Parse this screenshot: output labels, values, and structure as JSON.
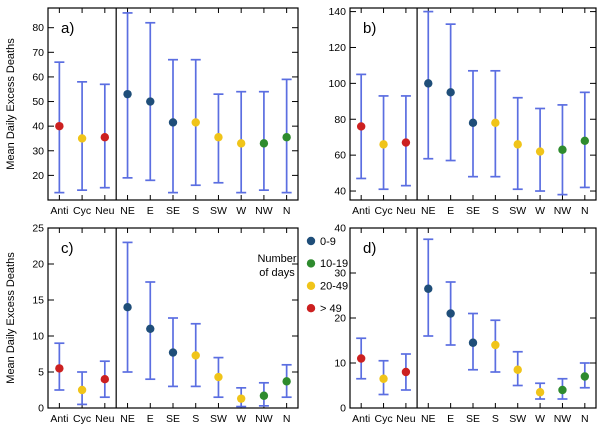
{
  "figure": {
    "y_axis_title": "Mean Daily Excess Deaths"
  },
  "chart_data": {
    "type": "scatter",
    "description": "Four-panel figure of mean daily excess deaths with error bars by synoptic category (Anti, Cyc, Neu) and wind direction (NE..N)",
    "categories": [
      "Anti",
      "Cyc",
      "Neu",
      "NE",
      "E",
      "SE",
      "S",
      "SW",
      "W",
      "NW",
      "N"
    ],
    "separator_after_index": 2,
    "error_bar_color": "#5b6ee1",
    "axis_color": "#000000",
    "group_colors": {
      "0-9": "#1f4e79",
      "10-19": "#2e8b2e",
      "20-49": "#f0c419",
      "> 49": "#cc2020"
    },
    "category_groups": [
      "> 49",
      "20-49",
      "> 49",
      "0-9",
      "0-9",
      "0-9",
      "20-49",
      "20-49",
      "20-49",
      "10-19",
      "10-19"
    ],
    "legend": {
      "title_lines": [
        "Number",
        "of days"
      ],
      "entries": [
        {
          "label": "0-9",
          "group": "0-9"
        },
        {
          "label": "10-19",
          "group": "10-19"
        },
        {
          "label": "20-49",
          "group": "20-49"
        },
        {
          "label": "> 49",
          "group": "> 49"
        }
      ]
    },
    "panels": [
      {
        "id": "a",
        "label": "a)",
        "ylabel": "Mean Daily Excess Deaths",
        "ylim": [
          10,
          88
        ],
        "yticks": [
          20,
          30,
          40,
          50,
          60,
          70,
          80
        ],
        "values": [
          40,
          35,
          35.5,
          53,
          50,
          41.5,
          41.5,
          35.5,
          33,
          33,
          35.5
        ],
        "lo": [
          13,
          14,
          15,
          19,
          18,
          13,
          16,
          17,
          13,
          14,
          13
        ],
        "hi": [
          66,
          58,
          57,
          86,
          82,
          67,
          67,
          53,
          54,
          54,
          59
        ]
      },
      {
        "id": "b",
        "label": "b)",
        "ylabel": "",
        "ylim": [
          35,
          142
        ],
        "yticks": [
          40,
          60,
          80,
          100,
          120,
          140
        ],
        "values": [
          76,
          66,
          67,
          100,
          95,
          78,
          78,
          66,
          62,
          63,
          68
        ],
        "lo": [
          47,
          41,
          43,
          58,
          57,
          48,
          48,
          41,
          40,
          38,
          42
        ],
        "hi": [
          105,
          93,
          93,
          140,
          133,
          107,
          107,
          92,
          86,
          88,
          95
        ]
      },
      {
        "id": "c",
        "label": "c)",
        "ylabel": "Mean Daily Excess Deaths",
        "ylim": [
          0,
          25
        ],
        "yticks": [
          0,
          5,
          10,
          15,
          20,
          25
        ],
        "values": [
          5.5,
          2.5,
          4,
          14,
          11,
          7.7,
          7.3,
          4.3,
          1.3,
          1.7,
          3.7
        ],
        "lo": [
          2.5,
          0.5,
          1.5,
          5,
          4,
          3,
          3,
          1.5,
          0.2,
          0.3,
          1.5
        ],
        "hi": [
          9,
          5,
          6.5,
          23,
          17.5,
          12.5,
          11.7,
          7,
          2.8,
          3.5,
          6
        ]
      },
      {
        "id": "d",
        "label": "d)",
        "ylabel": "",
        "ylim": [
          0,
          40
        ],
        "yticks": [
          0,
          10,
          20,
          30,
          40
        ],
        "values": [
          11,
          6.5,
          8,
          26.5,
          21,
          14.5,
          14,
          8.5,
          3.5,
          4,
          7
        ],
        "lo": [
          6.5,
          3,
          4,
          16,
          14,
          8.5,
          8,
          5,
          2,
          2,
          4.5
        ],
        "hi": [
          15.5,
          10.5,
          12,
          37.5,
          28,
          21,
          19.5,
          12.5,
          5.5,
          6.5,
          10
        ]
      }
    ]
  }
}
